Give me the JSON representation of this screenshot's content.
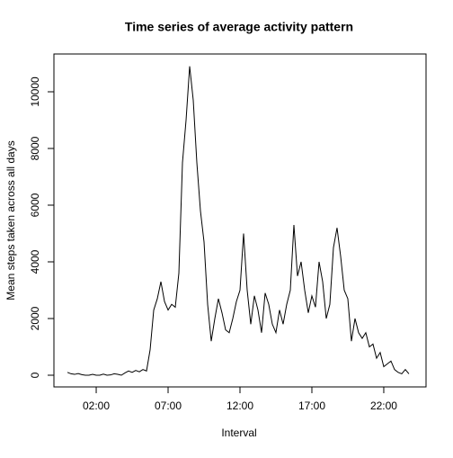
{
  "chart_data": {
    "type": "line",
    "title": "Time series of average activity pattern",
    "x_label": "Interval",
    "y_label": "Mean steps taken across all days",
    "color": "#000000",
    "x": [
      0,
      0.25,
      0.5,
      0.75,
      1,
      1.25,
      1.5,
      1.75,
      2,
      2.25,
      2.5,
      2.75,
      3,
      3.25,
      3.5,
      3.75,
      4,
      4.25,
      4.5,
      4.75,
      5,
      5.25,
      5.5,
      5.75,
      6,
      6.25,
      6.5,
      6.75,
      7,
      7.25,
      7.5,
      7.75,
      8,
      8.25,
      8.5,
      8.75,
      9,
      9.25,
      9.5,
      9.75,
      10,
      10.25,
      10.5,
      10.75,
      11,
      11.25,
      11.5,
      11.75,
      12,
      12.25,
      12.5,
      12.75,
      13,
      13.25,
      13.5,
      13.75,
      14,
      14.25,
      14.5,
      14.75,
      15,
      15.25,
      15.5,
      15.75,
      16,
      16.25,
      16.5,
      16.75,
      17,
      17.25,
      17.5,
      17.75,
      18,
      18.25,
      18.5,
      18.75,
      19,
      19.25,
      19.5,
      19.75,
      20,
      20.25,
      20.5,
      20.75,
      21,
      21.25,
      21.5,
      21.75,
      22,
      22.25,
      22.5,
      22.75,
      23,
      23.25,
      23.5,
      23.75
    ],
    "values": [
      100,
      50,
      30,
      60,
      20,
      0,
      0,
      30,
      0,
      0,
      40,
      0,
      10,
      50,
      30,
      0,
      80,
      150,
      100,
      170,
      120,
      200,
      150,
      900,
      2300,
      2700,
      3300,
      2600,
      2300,
      2500,
      2400,
      3600,
      7500,
      9000,
      10900,
      9700,
      7500,
      5800,
      4700,
      2500,
      1200,
      2000,
      2700,
      2200,
      1600,
      1500,
      2000,
      2600,
      3000,
      5000,
      3000,
      1800,
      2800,
      2300,
      1500,
      2900,
      2500,
      1800,
      1500,
      2300,
      1800,
      2500,
      3000,
      5300,
      3500,
      4000,
      3000,
      2200,
      2800,
      2400,
      4000,
      3300,
      2000,
      2500,
      4500,
      5200,
      4200,
      3000,
      2700,
      1200,
      2000,
      1500,
      1300,
      1500,
      1000,
      1100,
      600,
      800,
      300,
      400,
      500,
      200,
      100,
      50,
      200,
      50
    ],
    "xlim": [
      -0.94,
      24.94
    ],
    "xticks": [
      {
        "value": 2,
        "label": "02:00"
      },
      {
        "value": 7,
        "label": "07:00"
      },
      {
        "value": 12,
        "label": "12:00"
      },
      {
        "value": 17,
        "label": "17:00"
      },
      {
        "value": 22,
        "label": "22:00"
      }
    ],
    "ylim": [
      -413,
      11333
    ],
    "yticks": [
      0,
      2000,
      4000,
      6000,
      8000,
      10000
    ]
  }
}
